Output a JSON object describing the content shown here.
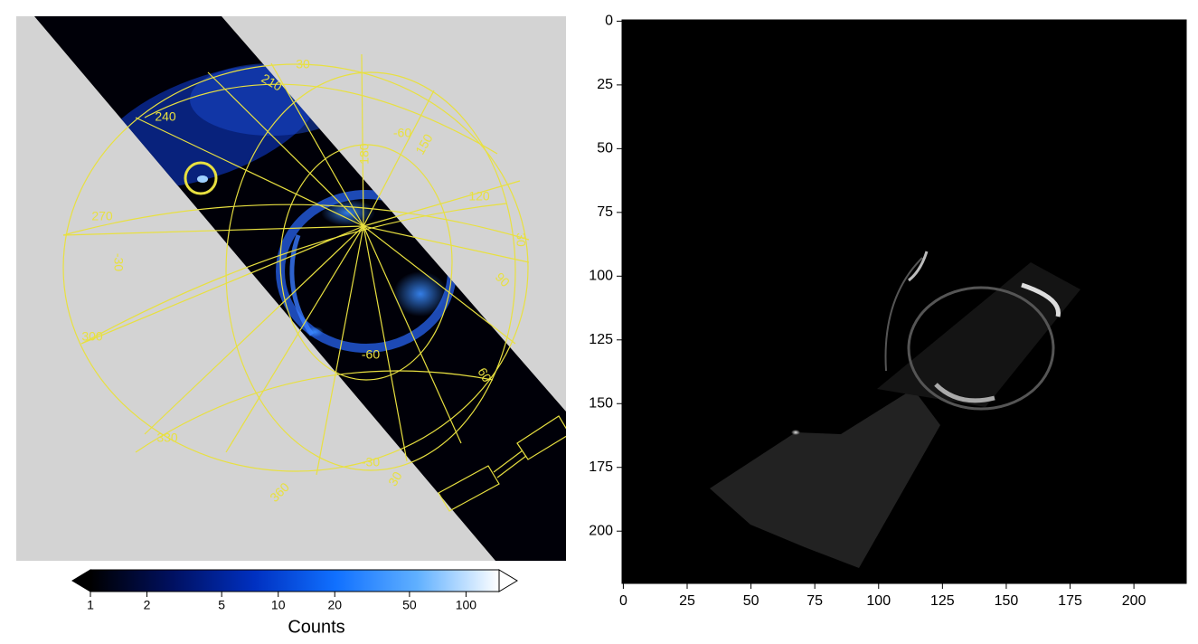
{
  "chart_data": [
    {
      "type": "polar-image",
      "annotations": [
        "30",
        "210",
        "240",
        "180",
        "-60",
        "150",
        "120",
        "270",
        "-30",
        "30",
        "90",
        "300",
        "-60",
        "60",
        "330",
        "360",
        "-30",
        "30"
      ],
      "colorbar": {
        "label": "Counts",
        "log_scale": true,
        "lim": [
          1,
          150
        ],
        "ticks": [
          1,
          2,
          5,
          10,
          20,
          50,
          100
        ],
        "colors": [
          "#000000",
          "#001060",
          "#0030c0",
          "#1070ff",
          "#60b0ff",
          "#ffffff"
        ]
      }
    },
    {
      "type": "image",
      "xlim": [
        -0.5,
        220.5
      ],
      "ylim": [
        220.5,
        -0.5
      ],
      "xticks": [
        0,
        25,
        50,
        75,
        100,
        125,
        150,
        175,
        200
      ],
      "yticks": [
        0,
        25,
        50,
        75,
        100,
        125,
        150,
        175,
        200
      ]
    }
  ]
}
